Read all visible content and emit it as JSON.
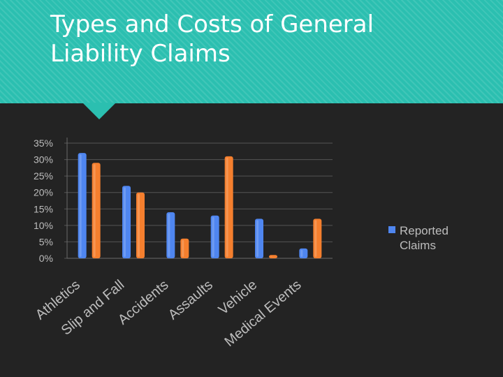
{
  "slide": {
    "title": "Types and Costs of General\nLiability Claims"
  },
  "colors": {
    "header_bg": "#2bbfb0",
    "series_blue": "#4f86f0",
    "series_orange": "#f57f2e",
    "text_gray": "#bdbdbd"
  },
  "chart_data": {
    "type": "bar",
    "title": "",
    "categories": [
      "Athletics",
      "Slip and Fall",
      "Accidents",
      "Assaults",
      "Vehicle",
      "Medical Events"
    ],
    "series": [
      {
        "name": "Reported Claims",
        "values": [
          32,
          22,
          14,
          13,
          12,
          3
        ]
      },
      {
        "name": "",
        "values": [
          29,
          20,
          6,
          31,
          1,
          12
        ]
      }
    ],
    "y_ticks": [
      "35%",
      "30%",
      "25%",
      "20%",
      "15%",
      "10%",
      "5%",
      "0%"
    ],
    "ylim": [
      0,
      35
    ],
    "legend": {
      "position": "right",
      "entries": [
        "Reported Claims"
      ]
    },
    "xlabel": "",
    "ylabel": "",
    "grid": true
  }
}
